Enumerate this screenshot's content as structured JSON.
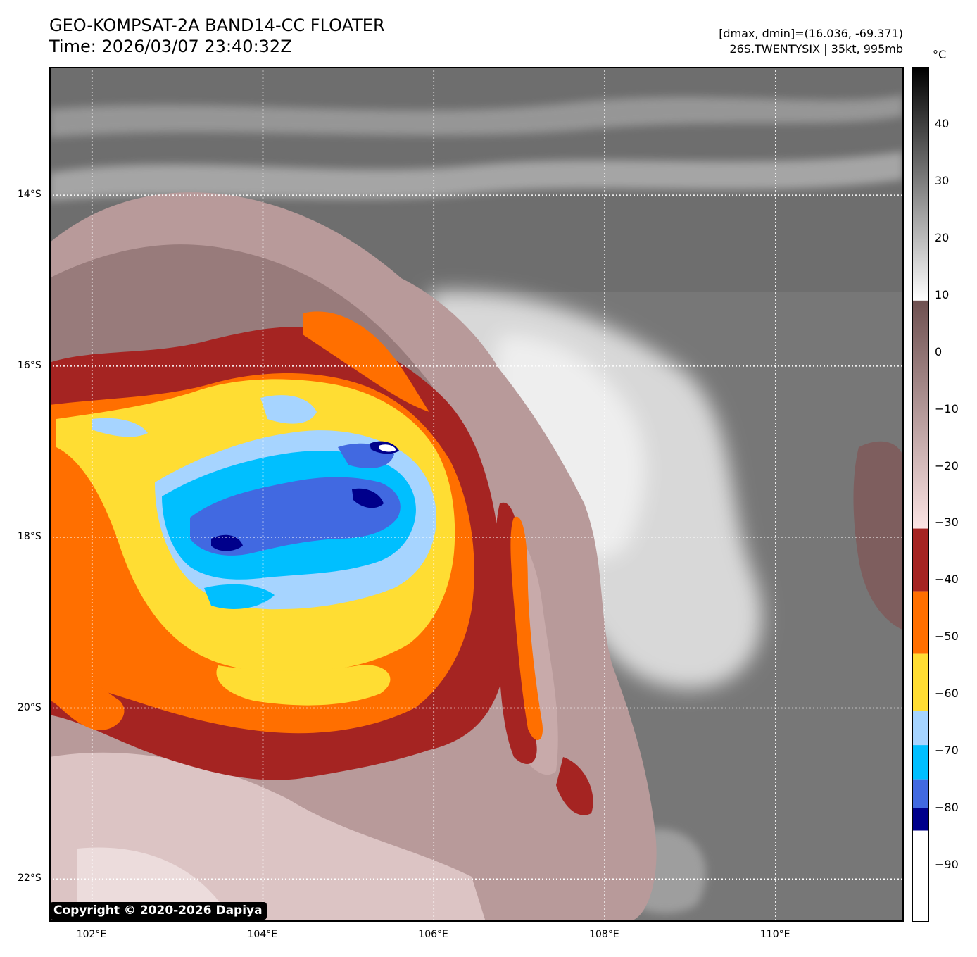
{
  "title": {
    "line1": "GEO-KOMPSAT-2A BAND14-CC FLOATER",
    "line2": "Time: 2026/03/07 23:40:32Z"
  },
  "info": {
    "line1": "[dmax, dmin]=(16.036, -69.371)",
    "line2": "26S.TWENTYSIX | 35kt, 995mb"
  },
  "map": {
    "lon_range": [
      101.5,
      111.5
    ],
    "lat_range": [
      -22.5,
      -12.5
    ],
    "lon_ticks": [
      {
        "value": 102,
        "label": "102°E"
      },
      {
        "value": 104,
        "label": "104°E"
      },
      {
        "value": 106,
        "label": "106°E"
      },
      {
        "value": 108,
        "label": "108°E"
      },
      {
        "value": 110,
        "label": "110°E"
      }
    ],
    "lat_ticks": [
      {
        "value": -14,
        "label": "14°S"
      },
      {
        "value": -16,
        "label": "16°S"
      },
      {
        "value": -18,
        "label": "18°S"
      },
      {
        "value": -20,
        "label": "20°S"
      },
      {
        "value": -22,
        "label": "22°S"
      }
    ],
    "grid": "dotted white",
    "storm_center": {
      "lon": 105.5,
      "lat": -17.2
    }
  },
  "colorbar": {
    "unit": "°C",
    "range": [
      -100,
      50
    ],
    "tick_labels": [
      {
        "value": 40,
        "label": "40"
      },
      {
        "value": 30,
        "label": "30"
      },
      {
        "value": 20,
        "label": "20"
      },
      {
        "value": 10,
        "label": "10"
      },
      {
        "value": 0,
        "label": "0"
      },
      {
        "value": -10,
        "label": "−10"
      },
      {
        "value": -20,
        "label": "−20"
      },
      {
        "value": -30,
        "label": "−30"
      },
      {
        "value": -40,
        "label": "−40"
      },
      {
        "value": -50,
        "label": "−50"
      },
      {
        "value": -60,
        "label": "−60"
      },
      {
        "value": -70,
        "label": "−70"
      },
      {
        "value": -80,
        "label": "−80"
      },
      {
        "value": -90,
        "label": "−90"
      }
    ],
    "segments": [
      {
        "from": 9,
        "to": 50,
        "gradient": [
          "#ffffff",
          "#000000"
        ]
      },
      {
        "from": -31,
        "to": 9,
        "gradient": [
          "#fce4e4",
          "#6e5050"
        ]
      },
      {
        "from": -42,
        "to": -31,
        "color": "#a52422"
      },
      {
        "from": -53,
        "to": -42,
        "color": "#ff6f00"
      },
      {
        "from": -63,
        "to": -53,
        "color": "#ffdd33"
      },
      {
        "from": -69,
        "to": -63,
        "color": "#a6d4ff"
      },
      {
        "from": -75,
        "to": -69,
        "color": "#00bfff"
      },
      {
        "from": -80,
        "to": -75,
        "color": "#4169e1"
      },
      {
        "from": -84,
        "to": -80,
        "color": "#00008b"
      },
      {
        "from": -100,
        "to": -84,
        "color": "#ffffff"
      }
    ]
  },
  "copyright": "Copyright © 2020-2026 Dapiya"
}
